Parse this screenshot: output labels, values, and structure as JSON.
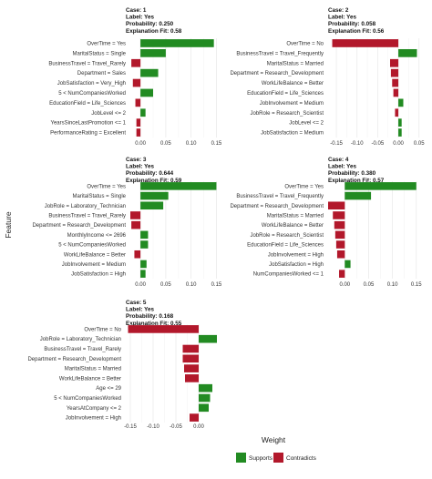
{
  "colors": {
    "supports": "#228B22",
    "contradicts": "#B2182B",
    "grid": "#ebebeb"
  },
  "axis": {
    "xlabel": "Weight",
    "ylabel": "Feature"
  },
  "legend": {
    "placement": "bottom",
    "entries": [
      {
        "name": "Supports",
        "color": "#228B22"
      },
      {
        "name": "Contradicts",
        "color": "#B2182B"
      }
    ]
  },
  "chart_data": [
    {
      "type": "bar",
      "header": [
        "Case: 1",
        "Label: Yes",
        "Probability: 0.250",
        "Explanation Fit: 0.58"
      ],
      "xlim": [
        -0.02,
        0.16
      ],
      "ticks": [
        "0.00",
        "0.05",
        "0.10",
        "0.15"
      ],
      "tick_values": [
        0,
        0.05,
        0.1,
        0.15
      ],
      "categories": [
        "OverTime = Yes",
        "MaritalStatus = Single",
        "BusinessTravel = Travel_Rarely",
        "Department = Sales",
        "JobSatisfaction = Very_High",
        "5 < NumCompaniesWorked",
        "EducationField = Life_Sciences",
        "JobLevel <= 2",
        "YearsSinceLastPromotion <= 1",
        "PerformanceRating = Excellent"
      ],
      "values": [
        0.145,
        0.05,
        -0.018,
        0.035,
        -0.015,
        0.025,
        -0.01,
        0.01,
        -0.008,
        -0.008
      ]
    },
    {
      "type": "bar",
      "header": [
        "Case: 2",
        "Label: Yes",
        "Probability: 0.058",
        "Explanation Fit: 0.56"
      ],
      "xlim": [
        -0.17,
        0.055
      ],
      "ticks": [
        "-0.15",
        "-0.10",
        "-0.05",
        "0.00",
        "0.05"
      ],
      "tick_values": [
        -0.15,
        -0.1,
        -0.05,
        0,
        0.05
      ],
      "categories": [
        "OverTime = No",
        "BusinessTravel = Travel_Frequently",
        "MaritalStatus = Married",
        "Department = Research_Development",
        "WorkLifeBalance = Better",
        "EducationField = Life_Sciences",
        "JobInvolvement = Medium",
        "JobRole = Research_Scientist",
        "JobLevel <= 2",
        "JobSatisfaction = Medium"
      ],
      "values": [
        -0.16,
        0.045,
        -0.02,
        -0.018,
        -0.015,
        -0.012,
        0.012,
        -0.008,
        0.008,
        0.008
      ]
    },
    {
      "type": "bar",
      "header": [
        "Case: 3",
        "Label: Yes",
        "Probability: 0.644",
        "Explanation Fit: 0.59"
      ],
      "xlim": [
        -0.02,
        0.16
      ],
      "ticks": [
        "0.00",
        "0.05",
        "0.10",
        "0.15"
      ],
      "tick_values": [
        0,
        0.05,
        0.1,
        0.15
      ],
      "categories": [
        "OverTime = Yes",
        "MaritalStatus = Single",
        "JobRole = Laboratory_Technician",
        "BusinessTravel = Travel_Rarely",
        "Department = Research_Development",
        "MonthlyIncome <= 2696",
        "5 < NumCompaniesWorked",
        "WorkLifeBalance = Better",
        "JobInvolvement = Medium",
        "JobSatisfaction = High"
      ],
      "values": [
        0.15,
        0.055,
        0.045,
        -0.02,
        -0.018,
        0.015,
        0.015,
        -0.012,
        0.012,
        0.01
      ]
    },
    {
      "type": "bar",
      "header": [
        "Case: 4",
        "Label: Yes",
        "Probability: 0.380",
        "Explanation Fit: 0.57"
      ],
      "xlim": [
        -0.035,
        0.16
      ],
      "ticks": [
        "0.00",
        "0.05",
        "0.10",
        "0.15"
      ],
      "tick_values": [
        0,
        0.05,
        0.1,
        0.15
      ],
      "categories": [
        "OverTime = Yes",
        "BusinessTravel = Travel_Frequently",
        "Department = Research_Development",
        "MaritalStatus = Married",
        "WorkLifeBalance = Better",
        "JobRole = Research_Scientist",
        "EducationField = Life_Sciences",
        "JobInvolvement = High",
        "JobSatisfaction = High",
        "NumCompaniesWorked <= 1"
      ],
      "values": [
        0.15,
        0.055,
        -0.035,
        -0.025,
        -0.022,
        -0.02,
        -0.018,
        -0.016,
        0.012,
        -0.012
      ]
    },
    {
      "type": "bar",
      "header": [
        "Case: 5",
        "Label: Yes",
        "Probability: 0.168",
        "Explanation Fit: 0.55"
      ],
      "xlim": [
        -0.16,
        0.05
      ],
      "ticks": [
        "-0.15",
        "-0.10",
        "-0.05",
        "0.00"
      ],
      "tick_values": [
        -0.15,
        -0.1,
        -0.05,
        0
      ],
      "categories": [
        "OverTime = No",
        "JobRole = Laboratory_Technician",
        "BusinessTravel = Travel_Rarely",
        "Department = Research_Development",
        "MaritalStatus = Married",
        "WorkLifeBalance = Better",
        "Age <= 29",
        "5 < NumCompaniesWorked",
        "YearsAtCompany <= 2",
        "JobInvolvement = High"
      ],
      "values": [
        -0.155,
        0.04,
        -0.035,
        -0.035,
        -0.032,
        -0.03,
        0.03,
        0.025,
        0.022,
        -0.02
      ]
    }
  ]
}
